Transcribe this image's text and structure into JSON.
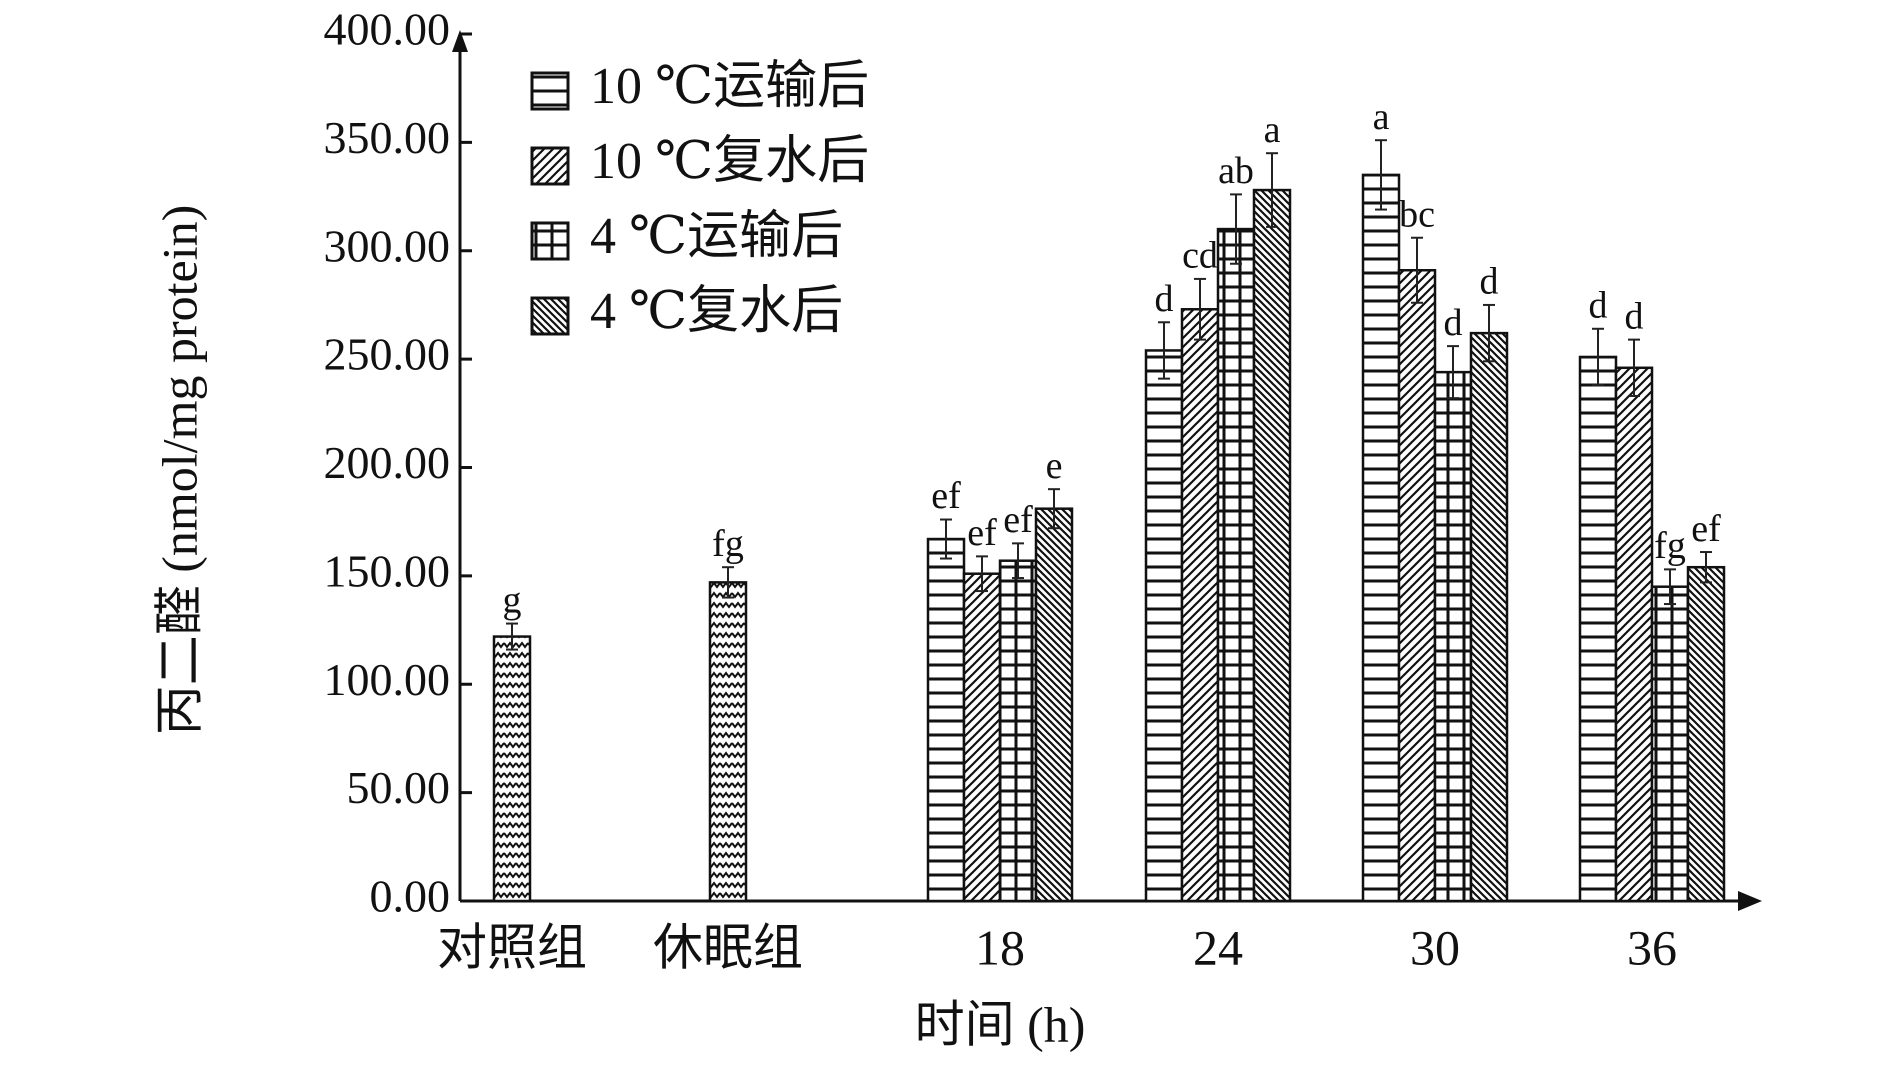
{
  "chart_data": {
    "type": "bar",
    "x_label": "时间 (h)",
    "y_label": "丙二醛 (nmol/mg protein)",
    "categories": [
      "对照组",
      "休眠组",
      "18",
      "24",
      "30",
      "36"
    ],
    "ylim": [
      0,
      400
    ],
    "yticks": [
      {
        "value": 0,
        "label": "0.00"
      },
      {
        "value": 50,
        "label": "50.00"
      },
      {
        "value": 100,
        "label": "100.00"
      },
      {
        "value": 150,
        "label": "150.00"
      },
      {
        "value": 200,
        "label": "200.00"
      },
      {
        "value": 250,
        "label": "250.00"
      },
      {
        "value": 300,
        "label": "300.00"
      },
      {
        "value": 350,
        "label": "350.00"
      },
      {
        "value": 400,
        "label": "400.00"
      }
    ],
    "series": [
      {
        "name": "10 ℃运输后",
        "pattern": "hlines",
        "values": [
          null,
          null,
          167,
          254,
          335,
          251
        ],
        "errors": [
          null,
          null,
          9,
          13,
          16,
          13
        ],
        "letters": [
          null,
          null,
          "ef",
          "d",
          "a",
          "d"
        ]
      },
      {
        "name": "10 ℃复水后",
        "pattern": "fdiag",
        "values": [
          null,
          null,
          151,
          273,
          291,
          246
        ],
        "errors": [
          null,
          null,
          8,
          14,
          15,
          13
        ],
        "letters": [
          null,
          null,
          "ef",
          "cd",
          "bc",
          "d"
        ]
      },
      {
        "name": "4 ℃运输后",
        "pattern": "grid",
        "values": [
          null,
          null,
          157,
          310,
          244,
          145
        ],
        "errors": [
          null,
          null,
          8,
          16,
          12,
          8
        ],
        "letters": [
          null,
          null,
          "ef",
          "ab",
          "d",
          "fg"
        ]
      },
      {
        "name": "4 ℃复水后",
        "pattern": "bdiag",
        "values": [
          null,
          null,
          181,
          328,
          262,
          154
        ],
        "errors": [
          null,
          null,
          9,
          17,
          13,
          7
        ],
        "letters": [
          null,
          null,
          "e",
          "a",
          "d",
          "ef"
        ]
      },
      {
        "pattern": "zigzag",
        "values": [
          122,
          147,
          null,
          null,
          null,
          null
        ],
        "errors": [
          6,
          7,
          null,
          null,
          null,
          null
        ],
        "letters": [
          "g",
          "fg",
          null,
          null,
          null,
          null
        ]
      }
    ]
  }
}
